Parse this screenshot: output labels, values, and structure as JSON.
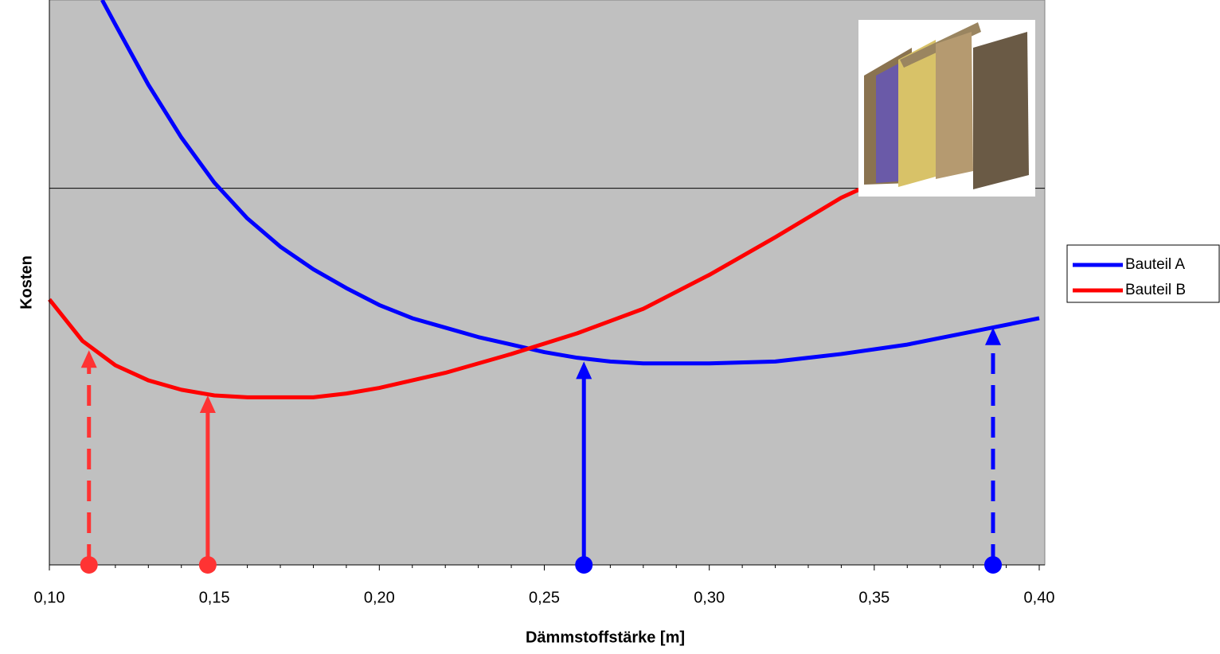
{
  "chart_data": {
    "type": "line",
    "xlabel": "Dämmstoffstärke [m]",
    "ylabel": "Kosten",
    "xlim": [
      0.1,
      0.4
    ],
    "ylim": [
      0,
      3
    ],
    "xticks": [
      {
        "value": 0.1,
        "label": "0,10"
      },
      {
        "value": 0.15,
        "label": "0,15"
      },
      {
        "value": 0.2,
        "label": "0,20"
      },
      {
        "value": 0.25,
        "label": "0,25"
      },
      {
        "value": 0.3,
        "label": "0,30"
      },
      {
        "value": 0.35,
        "label": "0,35"
      },
      {
        "value": 0.4,
        "label": "0,40"
      }
    ],
    "ygrid": [
      2
    ],
    "legend": "right",
    "series": [
      {
        "name": "Bauteil A",
        "color": "#0000ff",
        "x": [
          0.116,
          0.12,
          0.13,
          0.14,
          0.15,
          0.16,
          0.17,
          0.18,
          0.19,
          0.2,
          0.21,
          0.22,
          0.23,
          0.24,
          0.25,
          0.26,
          0.27,
          0.28,
          0.3,
          0.32,
          0.34,
          0.36,
          0.38,
          0.4
        ],
        "values": [
          3.0,
          2.87,
          2.55,
          2.27,
          2.03,
          1.84,
          1.69,
          1.57,
          1.47,
          1.38,
          1.31,
          1.26,
          1.21,
          1.17,
          1.13,
          1.1,
          1.08,
          1.07,
          1.07,
          1.08,
          1.12,
          1.17,
          1.24,
          1.31
        ]
      },
      {
        "name": "Bauteil B",
        "color": "#ff0000",
        "x": [
          0.1,
          0.11,
          0.12,
          0.13,
          0.14,
          0.15,
          0.16,
          0.17,
          0.18,
          0.19,
          0.2,
          0.22,
          0.24,
          0.26,
          0.28,
          0.3,
          0.32,
          0.34,
          0.36,
          0.38,
          0.395
        ],
        "values": [
          1.41,
          1.19,
          1.06,
          0.98,
          0.93,
          0.9,
          0.89,
          0.89,
          0.89,
          0.91,
          0.94,
          1.02,
          1.12,
          1.23,
          1.36,
          1.54,
          1.74,
          1.95,
          2.11,
          2.27,
          2.36
        ]
      }
    ],
    "markers": [
      {
        "x": 0.112,
        "y": 1.14,
        "color": "#ff3333",
        "dashed": true
      },
      {
        "x": 0.148,
        "y": 0.9,
        "color": "#ff3333",
        "dashed": false
      },
      {
        "x": 0.262,
        "y": 1.08,
        "color": "#0000ff",
        "dashed": false
      },
      {
        "x": 0.386,
        "y": 1.26,
        "color": "#0000ff",
        "dashed": true
      }
    ]
  }
}
